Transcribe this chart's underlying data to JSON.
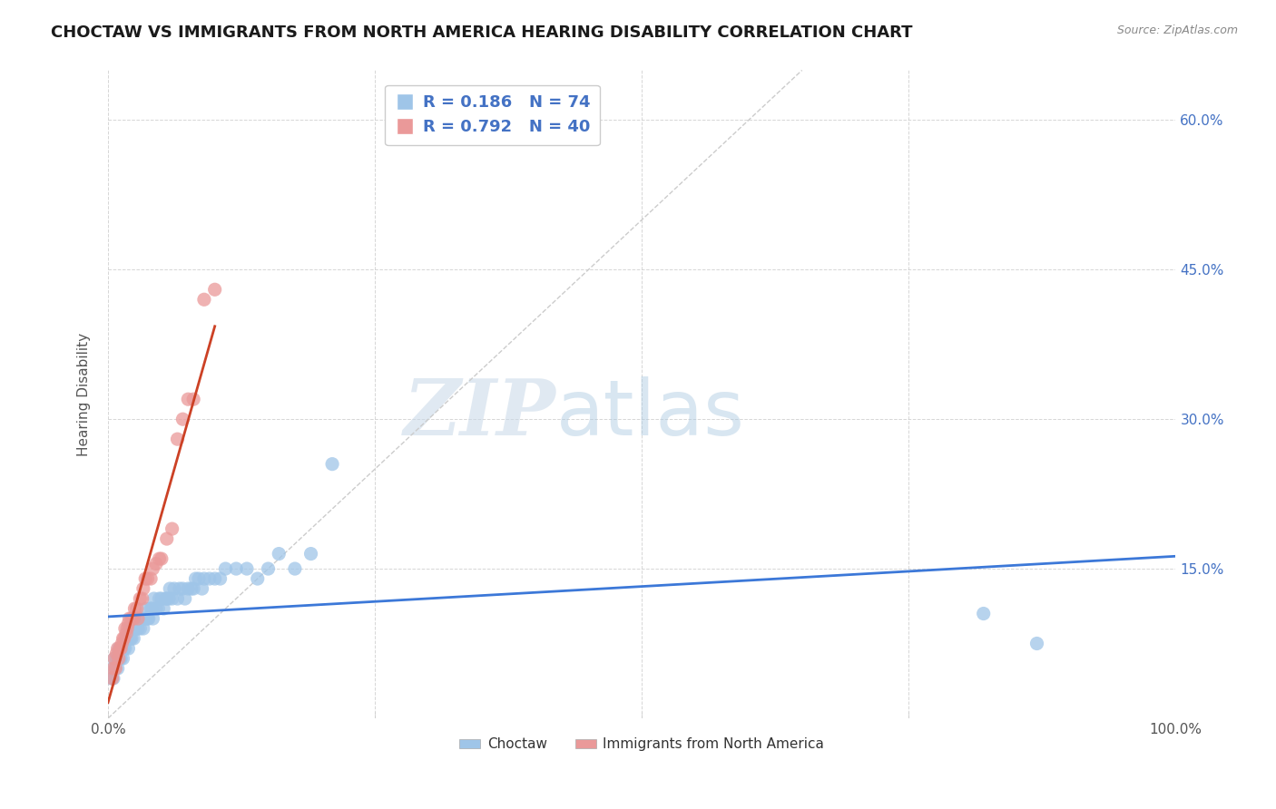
{
  "title": "CHOCTAW VS IMMIGRANTS FROM NORTH AMERICA HEARING DISABILITY CORRELATION CHART",
  "source": "Source: ZipAtlas.com",
  "ylabel": "Hearing Disability",
  "xlim": [
    0,
    1.0
  ],
  "ylim": [
    0,
    0.65
  ],
  "yticks": [
    0.0,
    0.15,
    0.3,
    0.45,
    0.6
  ],
  "yticklabels": [
    "",
    "15.0%",
    "30.0%",
    "45.0%",
    "60.0%"
  ],
  "legend1_label": "Choctaw",
  "legend2_label": "Immigrants from North America",
  "R1": 0.186,
  "N1": 74,
  "R2": 0.792,
  "N2": 40,
  "color1": "#9fc5e8",
  "color2": "#ea9999",
  "line1_color": "#3c78d8",
  "line2_color": "#cc4125",
  "diagonal_color": "#cccccc",
  "background_color": "#ffffff",
  "watermark_zip": "ZIP",
  "watermark_atlas": "atlas",
  "title_fontsize": 13,
  "axis_label_fontsize": 11,
  "tick_fontsize": 11,
  "choctaw_x": [
    0.003,
    0.004,
    0.005,
    0.006,
    0.007,
    0.008,
    0.009,
    0.01,
    0.011,
    0.012,
    0.013,
    0.014,
    0.015,
    0.016,
    0.017,
    0.018,
    0.019,
    0.02,
    0.021,
    0.022,
    0.023,
    0.024,
    0.025,
    0.026,
    0.027,
    0.028,
    0.03,
    0.031,
    0.032,
    0.033,
    0.035,
    0.036,
    0.037,
    0.038,
    0.04,
    0.041,
    0.042,
    0.043,
    0.045,
    0.047,
    0.048,
    0.05,
    0.052,
    0.054,
    0.055,
    0.057,
    0.058,
    0.06,
    0.062,
    0.065,
    0.067,
    0.07,
    0.072,
    0.075,
    0.078,
    0.08,
    0.082,
    0.085,
    0.088,
    0.09,
    0.095,
    0.1,
    0.105,
    0.11,
    0.12,
    0.13,
    0.14,
    0.15,
    0.16,
    0.175,
    0.19,
    0.21,
    0.82,
    0.87
  ],
  "choctaw_y": [
    0.04,
    0.05,
    0.04,
    0.06,
    0.05,
    0.06,
    0.05,
    0.07,
    0.06,
    0.06,
    0.07,
    0.06,
    0.07,
    0.07,
    0.08,
    0.08,
    0.07,
    0.09,
    0.08,
    0.08,
    0.09,
    0.08,
    0.09,
    0.09,
    0.1,
    0.09,
    0.09,
    0.1,
    0.1,
    0.09,
    0.1,
    0.11,
    0.1,
    0.1,
    0.11,
    0.11,
    0.1,
    0.12,
    0.11,
    0.11,
    0.12,
    0.12,
    0.11,
    0.12,
    0.12,
    0.12,
    0.13,
    0.12,
    0.13,
    0.12,
    0.13,
    0.13,
    0.12,
    0.13,
    0.13,
    0.13,
    0.14,
    0.14,
    0.13,
    0.14,
    0.14,
    0.14,
    0.14,
    0.15,
    0.15,
    0.15,
    0.14,
    0.15,
    0.165,
    0.15,
    0.165,
    0.255,
    0.105,
    0.075
  ],
  "immigrant_x": [
    0.004,
    0.005,
    0.006,
    0.007,
    0.008,
    0.009,
    0.01,
    0.011,
    0.012,
    0.013,
    0.014,
    0.015,
    0.016,
    0.017,
    0.018,
    0.019,
    0.02,
    0.022,
    0.024,
    0.025,
    0.027,
    0.028,
    0.03,
    0.032,
    0.033,
    0.035,
    0.037,
    0.04,
    0.042,
    0.045,
    0.048,
    0.05,
    0.055,
    0.06,
    0.065,
    0.07,
    0.075,
    0.08,
    0.09,
    0.1
  ],
  "immigrant_y": [
    0.04,
    0.05,
    0.06,
    0.05,
    0.065,
    0.07,
    0.06,
    0.07,
    0.07,
    0.075,
    0.08,
    0.08,
    0.09,
    0.085,
    0.09,
    0.095,
    0.1,
    0.1,
    0.1,
    0.11,
    0.11,
    0.1,
    0.12,
    0.12,
    0.13,
    0.14,
    0.14,
    0.14,
    0.15,
    0.155,
    0.16,
    0.16,
    0.18,
    0.19,
    0.28,
    0.3,
    0.32,
    0.32,
    0.42,
    0.43
  ]
}
